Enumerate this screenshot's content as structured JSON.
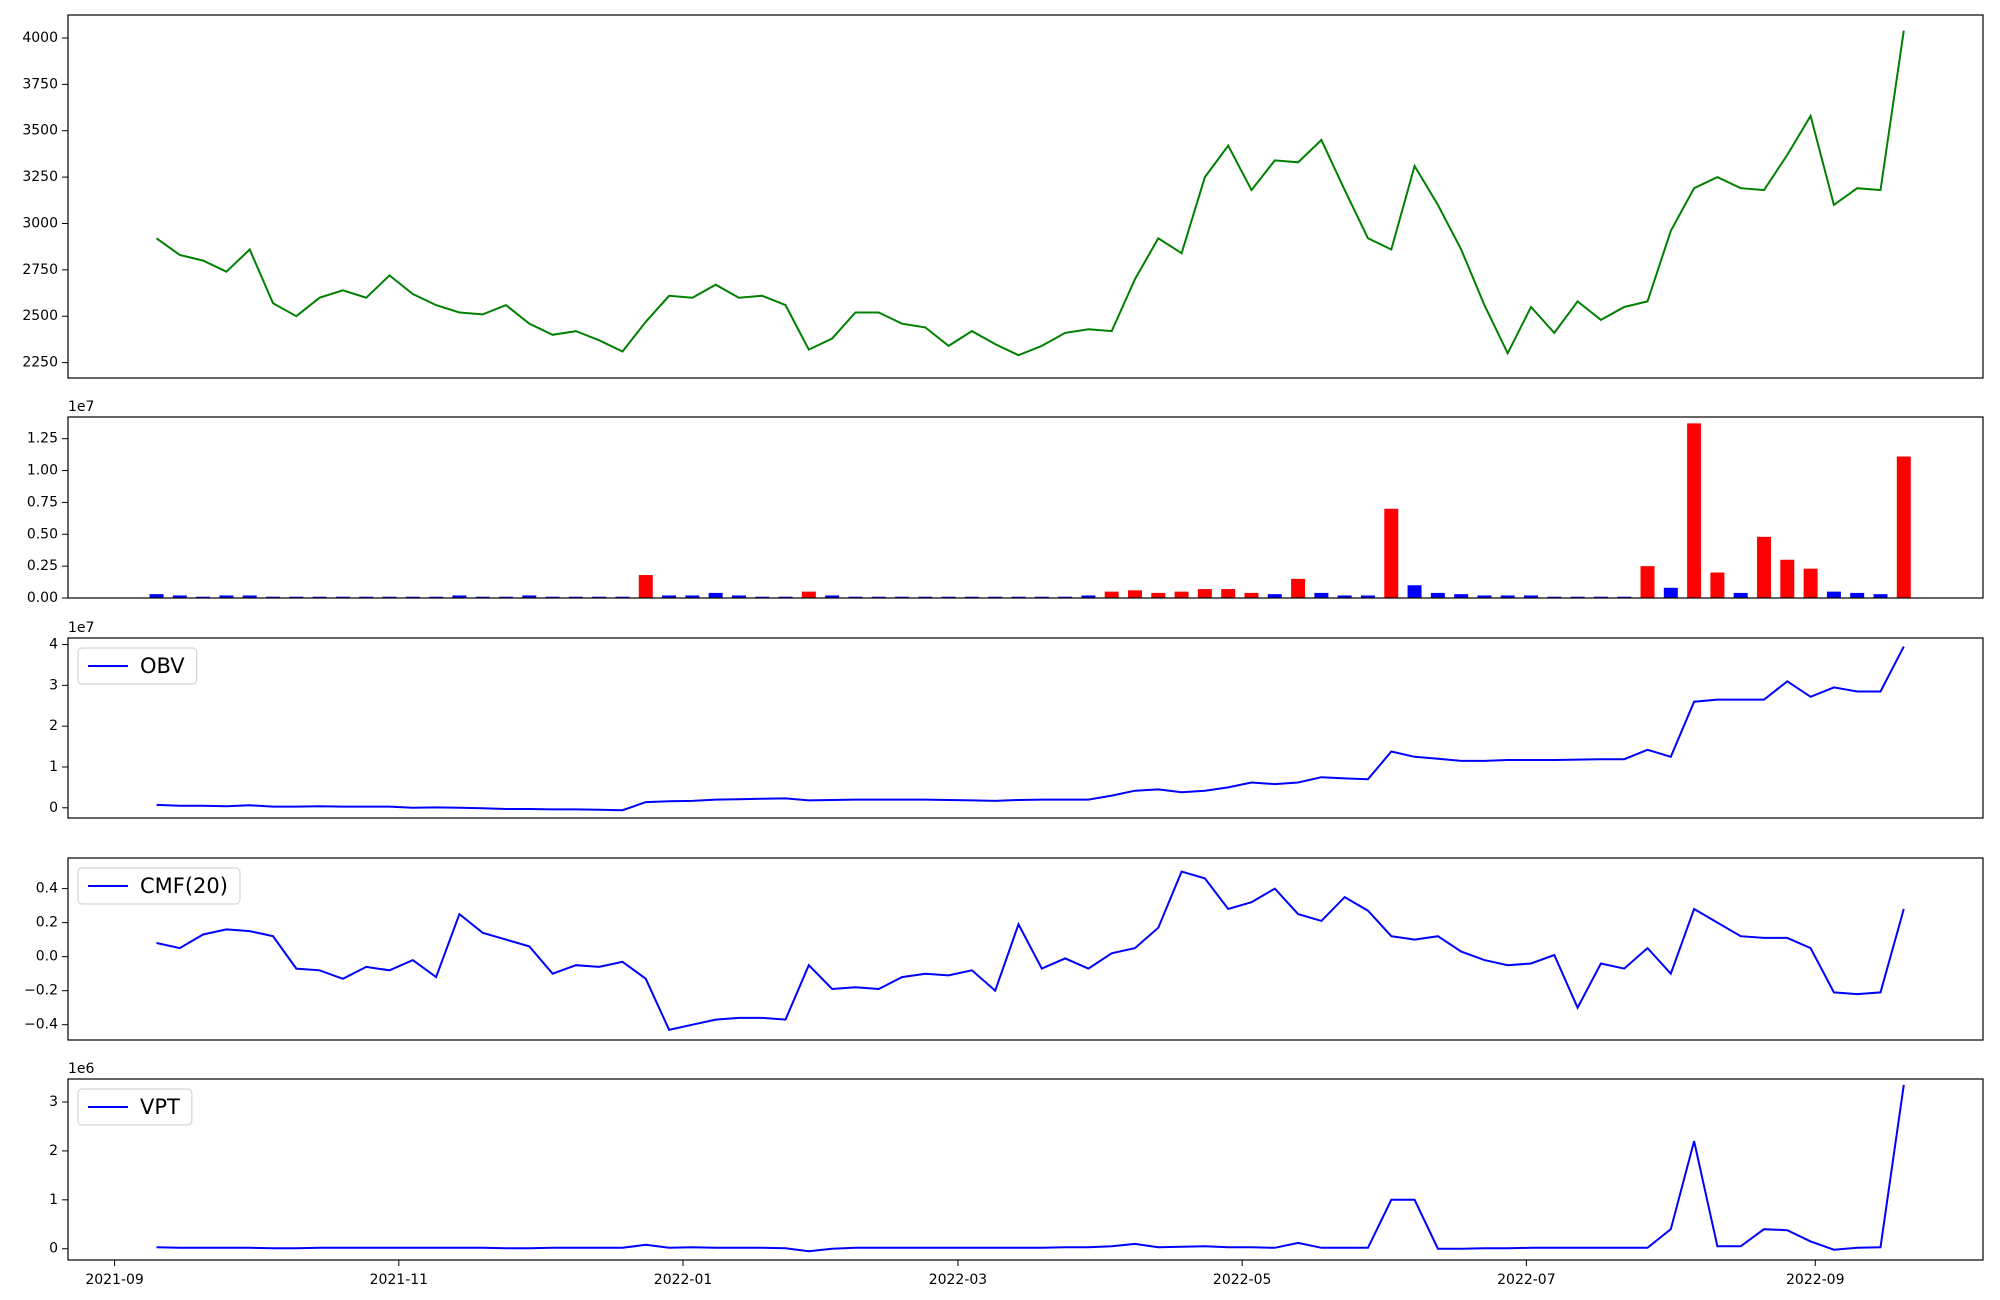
{
  "chart_data": [
    {
      "type": "line",
      "color": "#008000",
      "values": [
        2920,
        2830,
        2800,
        2740,
        2860,
        2570,
        2500,
        2600,
        2640,
        2600,
        2720,
        2620,
        2560,
        2520,
        2510,
        2560,
        2460,
        2400,
        2420,
        2370,
        2310,
        2470,
        2610,
        2600,
        2670,
        2600,
        2610,
        2560,
        2320,
        2380,
        2520,
        2520,
        2460,
        2440,
        2340,
        2420,
        2350,
        2290,
        2340,
        2410,
        2430,
        2420,
        2700,
        2920,
        2840,
        3250,
        3420,
        3180,
        3340,
        3330,
        3450,
        3180,
        2920,
        2860,
        3310,
        3100,
        2860,
        2560,
        2300,
        2550,
        2410,
        2580,
        2480,
        2550,
        2580,
        2960,
        3190,
        3250,
        3190,
        3180,
        3370,
        3580,
        3100,
        3190,
        3180,
        4040
      ],
      "ylim": [
        2167,
        4124
      ],
      "yticks": [
        2250,
        2500,
        2750,
        3000,
        3250,
        3500,
        3750,
        4000
      ]
    },
    {
      "type": "bar",
      "offset_label": "1e7",
      "values": [
        0.03,
        0.02,
        0.01,
        0.02,
        0.02,
        0.01,
        0.01,
        0.01,
        0.01,
        0.01,
        0.01,
        0.01,
        0.01,
        0.02,
        0.01,
        0.01,
        0.02,
        0.01,
        0.01,
        0.01,
        0.01,
        0.18,
        0.02,
        0.02,
        0.04,
        0.02,
        0.01,
        0.01,
        0.05,
        0.02,
        0.01,
        0.01,
        0.01,
        0.01,
        0.01,
        0.01,
        0.01,
        0.01,
        0.01,
        0.01,
        0.02,
        0.05,
        0.06,
        0.04,
        0.05,
        0.07,
        0.07,
        0.04,
        0.03,
        0.15,
        0.04,
        0.02,
        0.02,
        0.7,
        0.1,
        0.04,
        0.03,
        0.02,
        0.02,
        0.02,
        0.01,
        0.01,
        0.01,
        0.01,
        0.25,
        0.08,
        1.37,
        0.2,
        0.04,
        0.48,
        0.3,
        0.23,
        0.05,
        0.04,
        0.03,
        1.11
      ],
      "colors": [
        "#0000ff",
        "#0000ff",
        "#0000ff",
        "#0000ff",
        "#0000ff",
        "#0000ff",
        "#0000ff",
        "#0000ff",
        "#0000ff",
        "#0000ff",
        "#0000ff",
        "#0000ff",
        "#0000ff",
        "#0000ff",
        "#0000ff",
        "#0000ff",
        "#0000ff",
        "#0000ff",
        "#0000ff",
        "#0000ff",
        "#0000ff",
        "#ff0000",
        "#0000ff",
        "#0000ff",
        "#0000ff",
        "#0000ff",
        "#0000ff",
        "#0000ff",
        "#ff0000",
        "#0000ff",
        "#0000ff",
        "#0000ff",
        "#0000ff",
        "#0000ff",
        "#0000ff",
        "#0000ff",
        "#0000ff",
        "#0000ff",
        "#0000ff",
        "#0000ff",
        "#0000ff",
        "#ff0000",
        "#ff0000",
        "#ff0000",
        "#ff0000",
        "#ff0000",
        "#ff0000",
        "#ff0000",
        "#0000ff",
        "#ff0000",
        "#0000ff",
        "#0000ff",
        "#0000ff",
        "#ff0000",
        "#0000ff",
        "#0000ff",
        "#0000ff",
        "#0000ff",
        "#0000ff",
        "#0000ff",
        "#0000ff",
        "#0000ff",
        "#0000ff",
        "#0000ff",
        "#ff0000",
        "#0000ff",
        "#ff0000",
        "#ff0000",
        "#0000ff",
        "#ff0000",
        "#ff0000",
        "#ff0000",
        "#0000ff",
        "#0000ff",
        "#0000ff",
        "#ff0000"
      ],
      "ylim": [
        0,
        1.42
      ],
      "yticks": [
        {
          "value": 0,
          "label": "0.00"
        },
        {
          "value": 0.25,
          "label": "0.25"
        },
        {
          "value": 0.5,
          "label": "0.50"
        },
        {
          "value": 0.75,
          "label": "0.75"
        },
        {
          "value": 1,
          "label": "1.00"
        },
        {
          "value": 1.25,
          "label": "1.25"
        }
      ]
    },
    {
      "type": "line",
      "offset_label": "1e7",
      "legend": "upper left",
      "series": [
        {
          "name": "OBV",
          "color": "#0000ff",
          "values": [
            0.07,
            0.05,
            0.05,
            0.04,
            0.06,
            0.03,
            0.03,
            0.04,
            0.03,
            0.03,
            0.03,
            0.0,
            0.01,
            0.0,
            -0.01,
            -0.03,
            -0.03,
            -0.04,
            -0.04,
            -0.05,
            -0.06,
            0.14,
            0.16,
            0.17,
            0.2,
            0.21,
            0.22,
            0.23,
            0.18,
            0.19,
            0.2,
            0.2,
            0.2,
            0.2,
            0.19,
            0.18,
            0.17,
            0.19,
            0.2,
            0.2,
            0.2,
            0.3,
            0.42,
            0.45,
            0.38,
            0.42,
            0.5,
            0.62,
            0.58,
            0.62,
            0.75,
            0.72,
            0.7,
            1.38,
            1.25,
            1.2,
            1.15,
            1.15,
            1.17,
            1.17,
            1.17,
            1.18,
            1.19,
            1.19,
            1.42,
            1.25,
            2.6,
            2.65,
            2.65,
            2.65,
            3.1,
            2.72,
            2.95,
            2.85,
            2.85,
            3.95
          ]
        }
      ],
      "ylim": [
        -0.25,
        4.16
      ],
      "yticks": [
        0,
        1,
        2,
        3,
        4
      ]
    },
    {
      "type": "line",
      "legend": "upper left",
      "series": [
        {
          "name": "CMF(20)",
          "color": "#0000ff",
          "values": [
            0.08,
            0.05,
            0.13,
            0.16,
            0.15,
            0.12,
            -0.07,
            -0.08,
            -0.13,
            -0.06,
            -0.08,
            -0.02,
            -0.12,
            0.25,
            0.14,
            0.1,
            0.06,
            -0.1,
            -0.05,
            -0.06,
            -0.03,
            -0.13,
            -0.43,
            -0.4,
            -0.37,
            -0.36,
            -0.36,
            -0.37,
            -0.05,
            -0.19,
            -0.18,
            -0.19,
            -0.12,
            -0.1,
            -0.11,
            -0.08,
            -0.2,
            0.19,
            -0.07,
            -0.01,
            -0.07,
            0.02,
            0.05,
            0.17,
            0.5,
            0.46,
            0.28,
            0.32,
            0.4,
            0.25,
            0.21,
            0.35,
            0.27,
            0.12,
            0.1,
            0.12,
            0.03,
            -0.02,
            -0.05,
            -0.04,
            0.01,
            -0.3,
            -0.04,
            -0.07,
            0.05,
            -0.1,
            0.28,
            0.2,
            0.12,
            0.11,
            0.11,
            0.05,
            -0.21,
            -0.22,
            -0.21,
            0.28
          ]
        }
      ],
      "ylim": [
        -0.49,
        0.58
      ],
      "yticks": [
        {
          "value": -0.4,
          "label": "−0.4"
        },
        {
          "value": -0.2,
          "label": "−0.2"
        },
        {
          "value": 0,
          "label": "0.0"
        },
        {
          "value": 0.2,
          "label": "0.2"
        },
        {
          "value": 0.4,
          "label": "0.4"
        }
      ]
    },
    {
      "type": "line",
      "offset_label": "1e6",
      "legend": "upper left",
      "series": [
        {
          "name": "VPT",
          "color": "#0000ff",
          "values": [
            0.03,
            0.02,
            0.02,
            0.02,
            0.02,
            0.01,
            0.01,
            0.02,
            0.02,
            0.02,
            0.02,
            0.02,
            0.02,
            0.02,
            0.02,
            0.01,
            0.01,
            0.02,
            0.02,
            0.02,
            0.02,
            0.08,
            0.02,
            0.03,
            0.02,
            0.02,
            0.02,
            0.01,
            -0.05,
            0.0,
            0.02,
            0.02,
            0.02,
            0.02,
            0.02,
            0.02,
            0.02,
            0.02,
            0.02,
            0.03,
            0.03,
            0.05,
            0.1,
            0.03,
            0.04,
            0.05,
            0.03,
            0.03,
            0.02,
            0.12,
            0.02,
            0.02,
            0.02,
            1.0,
            1.0,
            0.0,
            0.0,
            0.01,
            0.01,
            0.02,
            0.02,
            0.02,
            0.02,
            0.02,
            0.02,
            0.4,
            2.2,
            0.05,
            0.05,
            0.4,
            0.38,
            0.15,
            -0.02,
            0.02,
            0.03,
            3.35
          ]
        }
      ],
      "ylim": [
        -0.23,
        3.47
      ],
      "yticks": [
        0,
        1,
        2,
        3
      ],
      "categories": [
        null,
        null,
        null,
        null,
        null,
        null,
        null,
        null,
        null,
        null,
        null,
        null,
        null,
        null,
        null,
        null,
        null,
        null,
        null,
        null,
        null,
        null,
        null,
        null,
        null,
        null,
        null,
        null,
        null,
        null,
        null,
        null,
        null,
        null,
        null,
        null,
        null,
        null,
        null,
        null,
        null,
        null,
        null,
        null,
        null,
        null,
        null,
        null,
        null,
        null,
        null,
        null,
        null,
        null,
        null,
        null,
        null,
        null,
        null,
        null,
        null,
        null,
        null,
        null,
        null,
        null,
        null,
        null,
        null,
        null,
        null,
        null,
        null,
        null,
        null,
        null
      ],
      "xlim": [
        -3.8,
        78.4
      ],
      "xticks": [
        {
          "value": -1.8,
          "label": "2021-09"
        },
        {
          "value": 10.4,
          "label": "2021-11"
        },
        {
          "value": 22.6,
          "label": "2022-01"
        },
        {
          "value": 34.4,
          "label": "2022-03"
        },
        {
          "value": 46.6,
          "label": "2022-05"
        },
        {
          "value": 58.8,
          "label": "2022-07"
        },
        {
          "value": 71.2,
          "label": "2022-09"
        }
      ]
    }
  ]
}
